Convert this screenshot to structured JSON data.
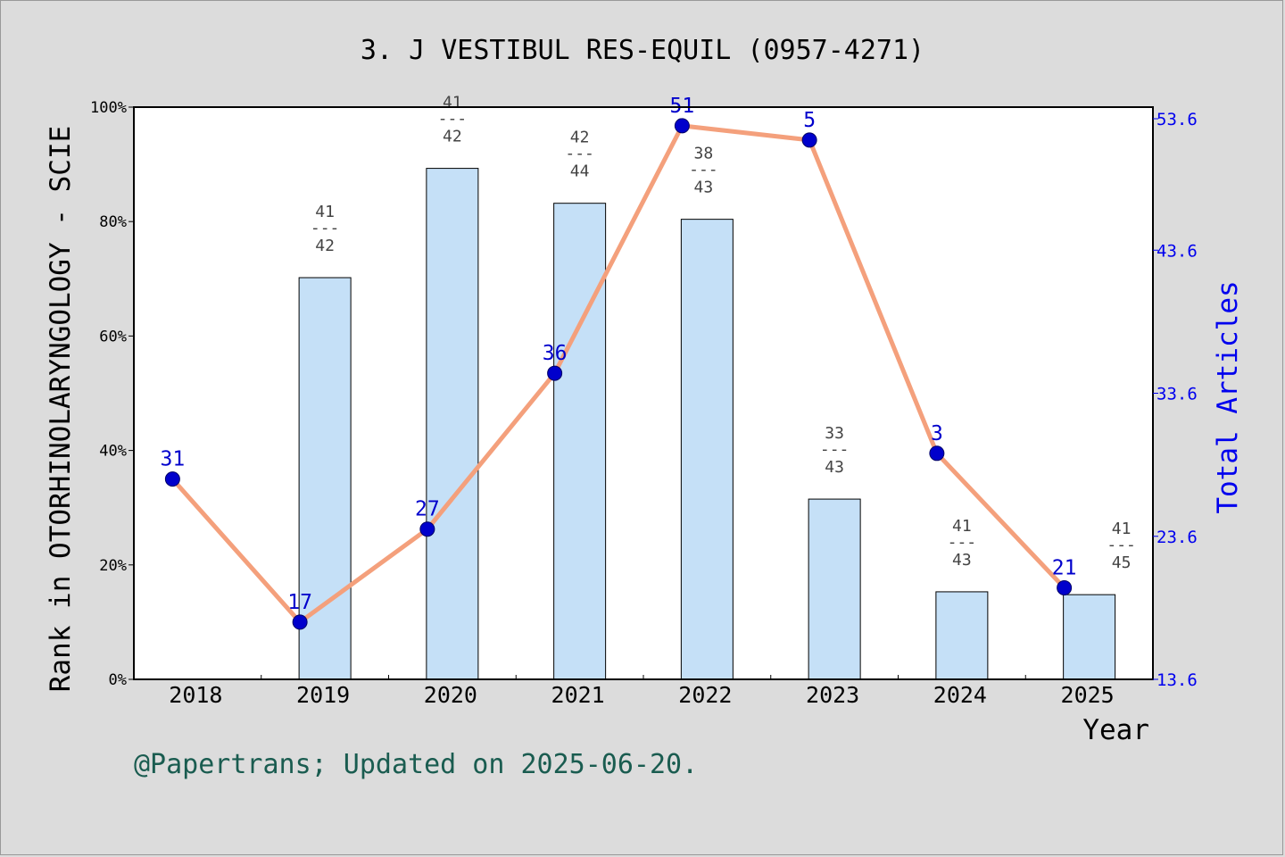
{
  "chart_data": {
    "type": "bar",
    "title": "3. J VESTIBUL RES-EQUIL (0957-4271)",
    "footer": "@Papertrans; Updated on 2025-06-20.",
    "xlabel": "Year",
    "ylabel": "Rank in OTORHINOLARYNGOLOGY - SCIE",
    "y2label": "Total Articles",
    "categories": [
      "2018",
      "2019",
      "2020",
      "2021",
      "2022",
      "2023",
      "2024",
      "2025"
    ],
    "ylim": [
      0,
      100
    ],
    "yticks": [
      "0%",
      "20%",
      "40%",
      "60%",
      "80%",
      "100%"
    ],
    "y2lim": [
      13.6,
      53.6
    ],
    "y2ticks": [
      "13.6",
      "23.6",
      "33.6",
      "43.6",
      "53.6"
    ],
    "bars": [
      null,
      70.2,
      89.3,
      83.2,
      80.4,
      31.5,
      15.3,
      14.8
    ],
    "rank_labels": [
      null,
      {
        "rank": "41",
        "sep": "---",
        "total": "42"
      },
      {
        "rank": "41",
        "sep": "---",
        "total": "42"
      },
      {
        "rank": "42",
        "sep": "---",
        "total": "44"
      },
      {
        "rank": "38",
        "sep": "---",
        "total": "43"
      },
      {
        "rank": "33",
        "sep": "---",
        "total": "43"
      },
      {
        "rank": "41",
        "sep": "---",
        "total": "43"
      },
      {
        "rank": "41",
        "sep": "---",
        "total": "45"
      }
    ],
    "line_values": [
      31,
      17,
      27,
      36,
      51,
      5,
      3,
      21
    ],
    "line_labels": [
      "31",
      "17",
      "27",
      "36",
      "51",
      "5",
      "3",
      "21"
    ],
    "line_positions": [
      27.6,
      17.6,
      24.1,
      35.0,
      52.3,
      51.3,
      29.4,
      20.0
    ],
    "colors": {
      "bar_fill": "#c5e0f7",
      "line": "#f4a07c",
      "marker": "#0000cc",
      "label": "#0000cc",
      "axis2": "#0000ee",
      "footer": "#1a5c50"
    }
  }
}
